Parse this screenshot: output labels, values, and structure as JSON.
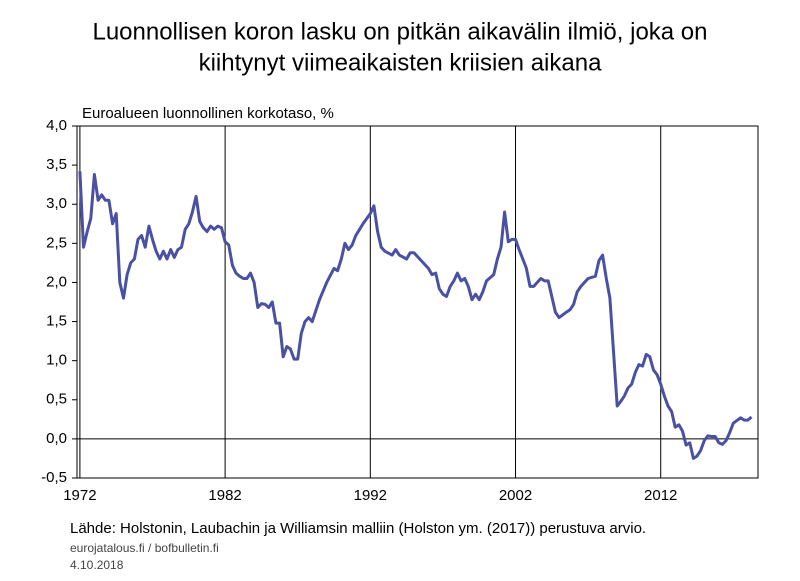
{
  "chart_data": {
    "type": "line",
    "title": [
      "Luonnollisen koron lasku on pitkän aikavälin ilmiö, joka on",
      "kiihtynyt viimeaikaisten kriisien aikana"
    ],
    "y_label": "Euroalueen luonnollinen korkotaso, %",
    "source": "Lähde: Holstonin, Laubachin ja Williamsin malliin (Holston ym. (2017)) perustuva arvio.",
    "footer": [
      "eurojatalous.fi  / bofbulletin.fi",
      "4.10.2018"
    ],
    "xlim": [
      1971.8,
      2018.7
    ],
    "xticks": [
      1972,
      1982,
      1992,
      2002,
      2012
    ],
    "ylim": [
      -0.5,
      4.0
    ],
    "yticks": [
      {
        "value": 4.0,
        "label": "4,0"
      },
      {
        "value": 3.5,
        "label": "3,5"
      },
      {
        "value": 3.0,
        "label": "3,0"
      },
      {
        "value": 2.5,
        "label": "2,5"
      },
      {
        "value": 2.0,
        "label": "2,0"
      },
      {
        "value": 1.5,
        "label": "1,5"
      },
      {
        "value": 1.0,
        "label": "1,0"
      },
      {
        "value": 0.5,
        "label": "0,5"
      },
      {
        "value": 0.0,
        "label": "0,0"
      },
      {
        "value": -0.5,
        "label": "-0,5"
      }
    ],
    "grid": true,
    "series": [
      {
        "color": "#4a51a3",
        "x": [
          1972.0,
          1972.25,
          1972.5,
          1972.75,
          1973.0,
          1973.25,
          1973.5,
          1973.75,
          1974.0,
          1974.25,
          1974.5,
          1974.75,
          1975.0,
          1975.25,
          1975.5,
          1975.75,
          1976.0,
          1976.25,
          1976.5,
          1976.75,
          1977.0,
          1977.25,
          1977.5,
          1977.75,
          1978.0,
          1978.25,
          1978.5,
          1978.75,
          1979.0,
          1979.25,
          1979.5,
          1979.75,
          1980.0,
          1980.25,
          1980.5,
          1980.75,
          1981.0,
          1981.25,
          1981.5,
          1981.75,
          1982.0,
          1982.25,
          1982.5,
          1982.75,
          1983.0,
          1983.25,
          1983.5,
          1983.75,
          1984.0,
          1984.25,
          1984.5,
          1984.75,
          1985.0,
          1985.25,
          1985.5,
          1985.75,
          1986.0,
          1986.25,
          1986.5,
          1986.75,
          1987.0,
          1987.25,
          1987.5,
          1987.75,
          1988.0,
          1988.5,
          1989.0,
          1989.5,
          1989.75,
          1990.0,
          1990.25,
          1990.5,
          1990.75,
          1991.0,
          1991.5,
          1992.0,
          1992.25,
          1992.5,
          1992.75,
          1993.0,
          1993.5,
          1993.75,
          1994.0,
          1994.5,
          1994.75,
          1995.0,
          1995.5,
          1996.0,
          1996.25,
          1996.5,
          1996.75,
          1997.0,
          1997.25,
          1997.5,
          1997.75,
          1998.0,
          1998.25,
          1998.5,
          1998.75,
          1999.0,
          1999.25,
          1999.5,
          1999.75,
          2000.0,
          2000.5,
          2000.75,
          2001.0,
          2001.25,
          2001.5,
          2001.75,
          2002.0,
          2002.25,
          2002.5,
          2002.75,
          2003.0,
          2003.25,
          2003.5,
          2003.75,
          2004.0,
          2004.25,
          2004.5,
          2004.75,
          2005.0,
          2005.5,
          2005.75,
          2006.0,
          2006.25,
          2006.5,
          2006.75,
          2007.0,
          2007.5,
          2007.75,
          2008.0,
          2008.25,
          2008.5,
          2008.75,
          2009.0,
          2009.25,
          2009.5,
          2009.75,
          2010.0,
          2010.25,
          2010.5,
          2010.75,
          2011.0,
          2011.25,
          2011.5,
          2011.75,
          2012.0,
          2012.25,
          2012.5,
          2012.75,
          2013.0,
          2013.25,
          2013.5,
          2013.75,
          2014.0,
          2014.25,
          2014.5,
          2014.75,
          2015.0,
          2015.25,
          2015.5,
          2015.75,
          2016.0,
          2016.25,
          2016.5,
          2016.75,
          2017.0,
          2017.5,
          2017.75,
          2018.0,
          2018.25
        ],
        "values": [
          3.42,
          2.45,
          2.65,
          2.82,
          3.38,
          3.05,
          3.12,
          3.05,
          3.05,
          2.75,
          2.88,
          2.0,
          1.8,
          2.1,
          2.25,
          2.3,
          2.55,
          2.6,
          2.45,
          2.72,
          2.55,
          2.4,
          2.3,
          2.4,
          2.3,
          2.42,
          2.32,
          2.42,
          2.45,
          2.68,
          2.75,
          2.9,
          3.1,
          2.78,
          2.7,
          2.65,
          2.72,
          2.68,
          2.72,
          2.7,
          2.52,
          2.48,
          2.22,
          2.12,
          2.08,
          2.05,
          2.05,
          2.12,
          2.0,
          1.68,
          1.73,
          1.72,
          1.68,
          1.75,
          1.48,
          1.48,
          1.05,
          1.18,
          1.15,
          1.02,
          1.02,
          1.35,
          1.5,
          1.55,
          1.5,
          1.78,
          2.0,
          2.18,
          2.15,
          2.3,
          2.5,
          2.42,
          2.48,
          2.6,
          2.75,
          2.88,
          2.98,
          2.65,
          2.45,
          2.4,
          2.35,
          2.42,
          2.35,
          2.3,
          2.38,
          2.38,
          2.28,
          2.18,
          2.1,
          2.12,
          1.92,
          1.85,
          1.82,
          1.95,
          2.02,
          2.12,
          2.02,
          2.05,
          1.95,
          1.78,
          1.85,
          1.78,
          1.88,
          2.02,
          2.1,
          2.3,
          2.45,
          2.9,
          2.52,
          2.55,
          2.55,
          2.42,
          2.3,
          2.18,
          1.95,
          1.95,
          2.0,
          2.05,
          2.02,
          2.02,
          1.82,
          1.62,
          1.55,
          1.62,
          1.65,
          1.72,
          1.88,
          1.95,
          2.0,
          2.05,
          2.08,
          2.28,
          2.35,
          2.05,
          1.8,
          1.12,
          0.42,
          0.48,
          0.55,
          0.65,
          0.7,
          0.85,
          0.95,
          0.93,
          1.08,
          1.05,
          0.88,
          0.82,
          0.7,
          0.55,
          0.42,
          0.35,
          0.15,
          0.18,
          0.1,
          -0.08,
          -0.05,
          -0.25,
          -0.22,
          -0.15,
          -0.02,
          0.04,
          0.03,
          0.03,
          -0.05,
          -0.07,
          -0.02,
          0.08,
          0.2,
          0.27,
          0.24,
          0.24,
          0.28
        ]
      }
    ]
  }
}
